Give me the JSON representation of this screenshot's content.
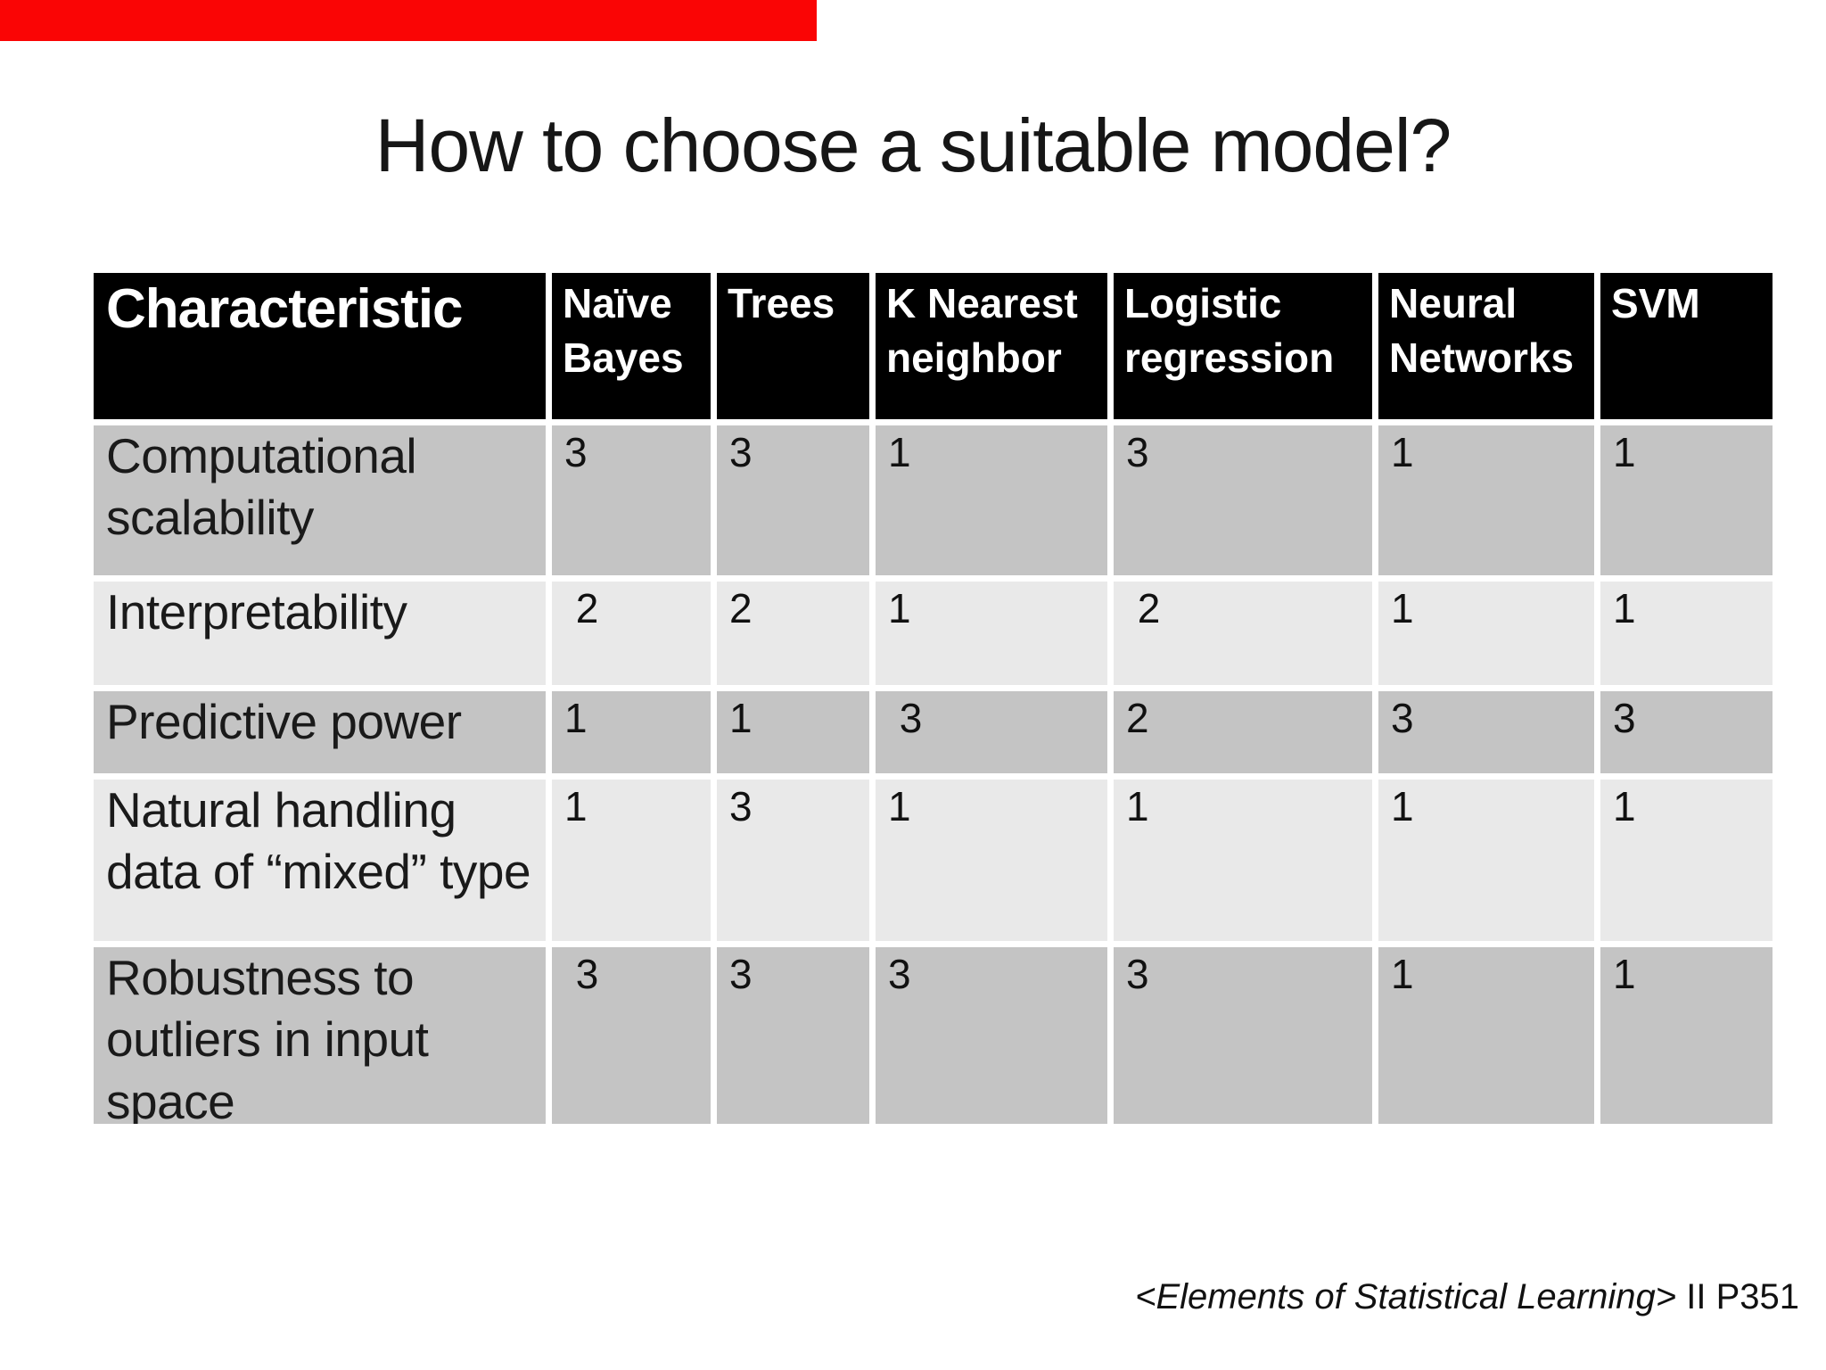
{
  "slide": {
    "title": "How to choose a suitable model?",
    "background_color": "#ffffff",
    "accent_bar_color": "#fa0505",
    "footer": {
      "source_italic": "<Elements of Statistical Learning>",
      "source_suffix": " II P351"
    }
  },
  "table": {
    "header_bg": "#000000",
    "band_dark": "#c4c4c4",
    "band_light": "#e9e9e9",
    "header": [
      "Characteristic",
      "Naïve Bayes",
      "Trees",
      "K Nearest neighbor",
      "Logistic regression",
      "Neural Networks",
      "SVM"
    ],
    "rows": [
      {
        "label": "Computational\nscalability",
        "values": [
          "3",
          "3",
          "1",
          "3",
          "1",
          "1"
        ]
      },
      {
        "label": "Interpretability",
        "values": [
          " 2",
          "2",
          "1",
          " 2",
          "1",
          "1"
        ]
      },
      {
        "label": "Predictive power",
        "values": [
          "1",
          "1",
          " 3",
          "2",
          "3",
          "3"
        ]
      },
      {
        "label": "Natural handling\ndata of “mixed” type",
        "values": [
          "1",
          "3",
          "1",
          "1",
          "1",
          "1"
        ]
      },
      {
        "label": "Robustness to\noutliers in input\nspace",
        "values": [
          " 3",
          "3",
          "3",
          "3",
          "1",
          "1"
        ]
      }
    ]
  },
  "chart_data": {
    "type": "table",
    "title": "How to choose a suitable model?",
    "columns": [
      "Characteristic",
      "Naïve Bayes",
      "Trees",
      "K Nearest neighbor",
      "Logistic regression",
      "Neural Networks",
      "SVM"
    ],
    "rows": [
      [
        "Computational scalability",
        3,
        3,
        1,
        3,
        1,
        1
      ],
      [
        "Interpretability",
        2,
        2,
        1,
        2,
        1,
        1
      ],
      [
        "Predictive power",
        1,
        1,
        3,
        2,
        3,
        3
      ],
      [
        "Natural handling data of “mixed” type",
        1,
        3,
        1,
        1,
        1,
        1
      ],
      [
        "Robustness to outliers in input space",
        3,
        3,
        3,
        3,
        1,
        1
      ]
    ]
  }
}
